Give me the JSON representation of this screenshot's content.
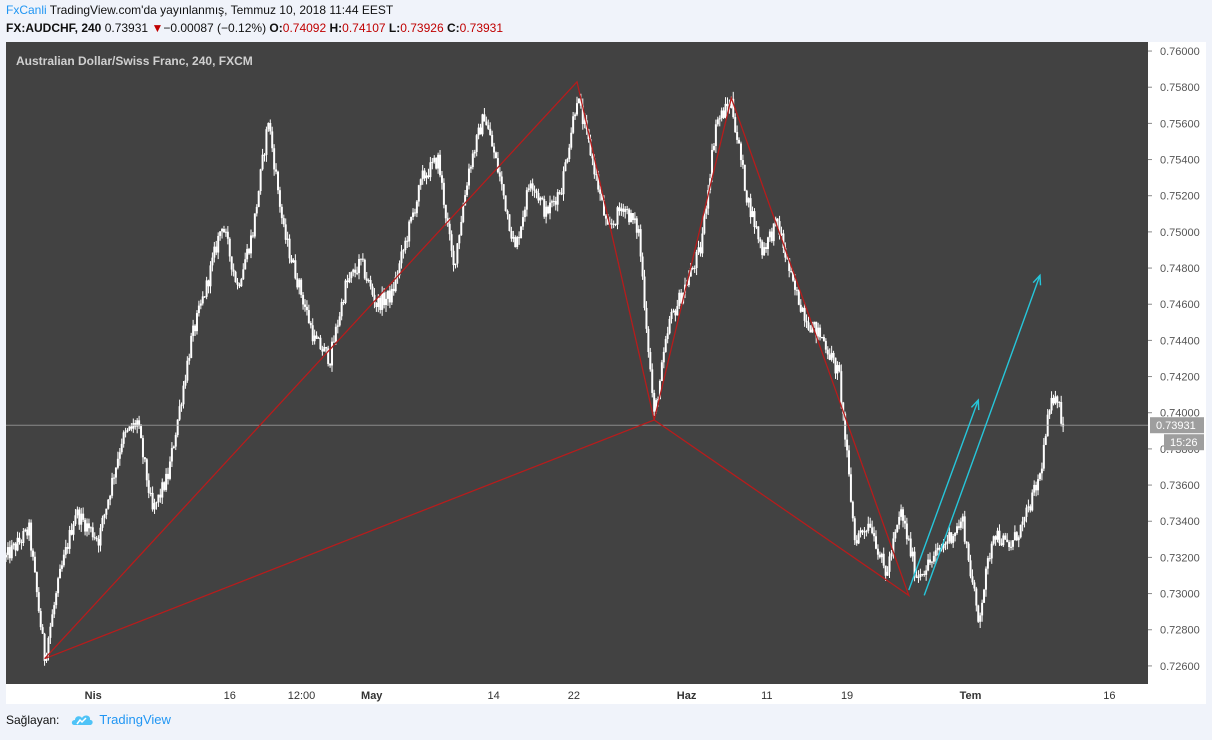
{
  "header": {
    "brand": "FxCanli",
    "published": " TradingView.com'da yayınlanmış, Temmuz 10, 2018 11:44 EEST",
    "symbol": "FX:AUDCHF, 240",
    "last": "0.73931",
    "change": "−0.00087 (−0.12%)",
    "o_label": "O:",
    "o_value": "0.74092",
    "h_label": "H:",
    "h_value": "0.74107",
    "l_label": "L:",
    "l_value": "0.73926",
    "c_label": "C:",
    "c_value": "0.73931"
  },
  "chart_data": {
    "type": "candlestick",
    "title": "Australian Dollar/Swiss Franc, 240, FXCM",
    "ylim": [
      0.725,
      0.7605
    ],
    "y_ticks": [
      "0.72600",
      "0.72800",
      "0.73000",
      "0.73200",
      "0.73400",
      "0.73600",
      "0.73800",
      "0.74000",
      "0.74200",
      "0.74400",
      "0.74600",
      "0.74800",
      "0.75000",
      "0.75200",
      "0.75400",
      "0.75600",
      "0.75800",
      "0.76000"
    ],
    "y_tick_values": [
      0.726,
      0.728,
      0.73,
      0.732,
      0.734,
      0.736,
      0.738,
      0.74,
      0.742,
      0.744,
      0.746,
      0.748,
      0.75,
      0.752,
      0.754,
      0.756,
      0.758,
      0.76
    ],
    "x_ticks": [
      {
        "label": "Nis",
        "bold": true,
        "t": 11.3
      },
      {
        "label": "16",
        "bold": false,
        "t": 29.0
      },
      {
        "label": "12:00",
        "bold": false,
        "t": 38.3
      },
      {
        "label": "May",
        "bold": true,
        "t": 47.4
      },
      {
        "label": "14",
        "bold": false,
        "t": 63.2
      },
      {
        "label": "22",
        "bold": false,
        "t": 73.6
      },
      {
        "label": "Haz",
        "bold": true,
        "t": 88.2
      },
      {
        "label": "11",
        "bold": false,
        "t": 98.6
      },
      {
        "label": "19",
        "bold": false,
        "t": 109.0
      },
      {
        "label": "Tem",
        "bold": true,
        "t": 125.0
      },
      {
        "label": "16",
        "bold": false,
        "t": 143.0
      }
    ],
    "x_range": [
      0,
      148
    ],
    "price_path": [
      [
        0,
        0.732
      ],
      [
        3,
        0.7335
      ],
      [
        5,
        0.7265
      ],
      [
        7,
        0.731
      ],
      [
        9,
        0.7345
      ],
      [
        12,
        0.733
      ],
      [
        15,
        0.7385
      ],
      [
        17,
        0.7395
      ],
      [
        19,
        0.7345
      ],
      [
        21,
        0.7365
      ],
      [
        24,
        0.744
      ],
      [
        26,
        0.747
      ],
      [
        28,
        0.7505
      ],
      [
        30,
        0.747
      ],
      [
        32,
        0.75
      ],
      [
        34,
        0.7562
      ],
      [
        36,
        0.75
      ],
      [
        38,
        0.747
      ],
      [
        40,
        0.744
      ],
      [
        42,
        0.743
      ],
      [
        44,
        0.747
      ],
      [
        46,
        0.7483
      ],
      [
        48,
        0.746
      ],
      [
        50,
        0.7465
      ],
      [
        52,
        0.7498
      ],
      [
        54,
        0.753
      ],
      [
        56,
        0.754
      ],
      [
        58,
        0.748
      ],
      [
        60,
        0.7535
      ],
      [
        62,
        0.7565
      ],
      [
        64,
        0.753
      ],
      [
        66,
        0.749
      ],
      [
        68,
        0.753
      ],
      [
        70,
        0.751
      ],
      [
        72,
        0.7525
      ],
      [
        74,
        0.7575
      ],
      [
        76,
        0.754
      ],
      [
        78,
        0.75
      ],
      [
        80,
        0.7515
      ],
      [
        82,
        0.75
      ],
      [
        84,
        0.7398
      ],
      [
        86,
        0.745
      ],
      [
        88,
        0.747
      ],
      [
        90,
        0.749
      ],
      [
        92,
        0.756
      ],
      [
        94,
        0.7572
      ],
      [
        96,
        0.752
      ],
      [
        98,
        0.749
      ],
      [
        100,
        0.7505
      ],
      [
        102,
        0.747
      ],
      [
        104,
        0.745
      ],
      [
        106,
        0.744
      ],
      [
        108,
        0.742
      ],
      [
        110,
        0.733
      ],
      [
        112,
        0.734
      ],
      [
        114,
        0.731
      ],
      [
        116,
        0.7345
      ],
      [
        118,
        0.731
      ],
      [
        120,
        0.7318
      ],
      [
        122,
        0.733
      ],
      [
        124,
        0.734
      ],
      [
        126,
        0.7285
      ],
      [
        128,
        0.7335
      ],
      [
        130,
        0.7325
      ],
      [
        132,
        0.734
      ],
      [
        134,
        0.7365
      ],
      [
        135,
        0.7395
      ],
      [
        136,
        0.7413
      ],
      [
        137,
        0.7393
      ]
    ],
    "pattern_lines": [
      [
        [
          5,
          0.7264
        ],
        [
          74,
          0.7583
        ],
        [
          84,
          0.7396
        ],
        [
          94,
          0.7574
        ],
        [
          117,
          0.7299
        ],
        [
          84,
          0.7396
        ],
        [
          5,
          0.7264
        ]
      ]
    ],
    "arrows": [
      [
        [
          117,
          0.7302
        ],
        [
          126,
          0.7407
        ]
      ],
      [
        [
          119,
          0.7299
        ],
        [
          134,
          0.7476
        ]
      ]
    ],
    "last_price": 0.73931,
    "last_price_label": "0.73931",
    "countdown_label": "15:26",
    "colors": {
      "chart_bg": "#424242",
      "candle": "#ffffff",
      "pattern": "#b71c1c",
      "arrow": "#26c6da",
      "axis_text": "#555555",
      "last_line": "#9e9e9e",
      "last_box": "#9e9e9e"
    }
  },
  "footer": {
    "label": "Sağlayan:",
    "source": "TradingView"
  }
}
